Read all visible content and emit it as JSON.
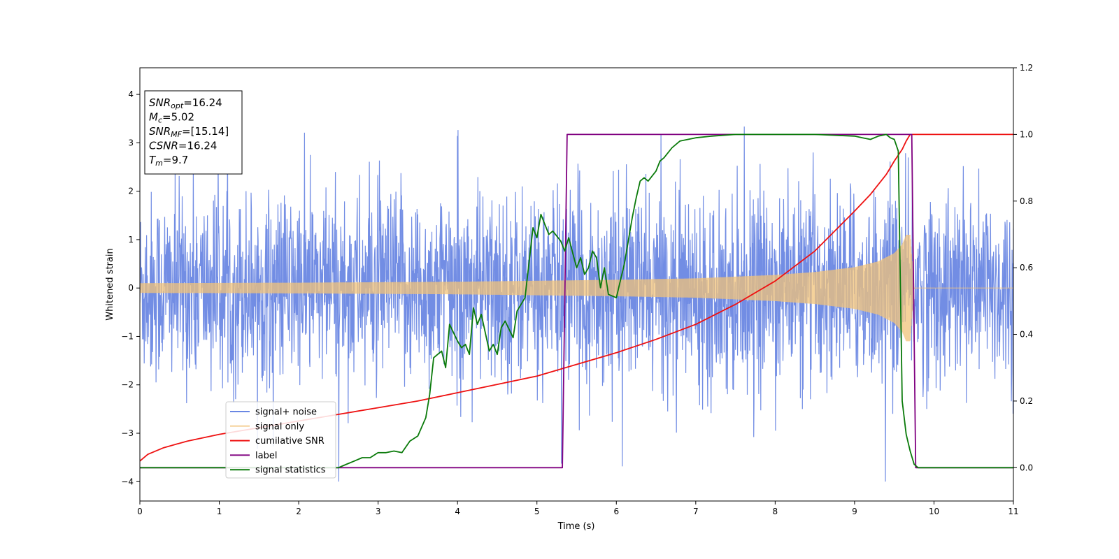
{
  "chart_data": {
    "type": "line",
    "xlabel": "Time (s)",
    "ylabel": "Whitened strain",
    "xlim": [
      0,
      11
    ],
    "ylim": [
      -4.4,
      4.55
    ],
    "y2lim": [
      -0.1,
      1.2
    ],
    "xticks": [
      0,
      1,
      2,
      3,
      4,
      5,
      6,
      7,
      8,
      9,
      10,
      11
    ],
    "yticks": [
      -4,
      -3,
      -2,
      -1,
      0,
      1,
      2,
      3,
      4
    ],
    "y2ticks": [
      0.0,
      0.2,
      0.4,
      0.6,
      0.8,
      1.0,
      1.2
    ],
    "grid": false,
    "legend_position": "lower-left",
    "annotation": {
      "lines": [
        {
          "name": "SNR",
          "sub": "opt",
          "value": "=16.24"
        },
        {
          "name": "M",
          "sub": "c",
          "value": "=5.02"
        },
        {
          "name": "SNR",
          "sub": "MF",
          "value": "=[15.14]"
        },
        {
          "name": "CSNR",
          "sub": "",
          "value": "=16.24"
        },
        {
          "name": "T",
          "sub": "m",
          "value": "=9.7"
        }
      ]
    },
    "series": [
      {
        "name": "signal+ noise",
        "axis": "left",
        "color": "#6a87e3",
        "kind": "noise",
        "typical_amplitude": 1.6,
        "peak_values": [
          3.6,
          -4.0,
          4.18,
          3.65,
          -3.75
        ]
      },
      {
        "name": "signal only",
        "axis": "left",
        "color": "#f2c37a",
        "kind": "chirp",
        "envelope_x": [
          0,
          2,
          4,
          6,
          7,
          8,
          8.5,
          9,
          9.3,
          9.5,
          9.6,
          9.65,
          9.7,
          9.75,
          11
        ],
        "envelope_y": [
          0.1,
          0.11,
          0.13,
          0.17,
          0.2,
          0.27,
          0.33,
          0.43,
          0.55,
          0.72,
          0.9,
          1.1,
          1.1,
          0,
          0
        ]
      },
      {
        "name": "cumilative SNR",
        "axis": "right",
        "color": "#ee1111",
        "x": [
          0,
          0.1,
          0.3,
          0.6,
          1,
          1.5,
          2,
          2.5,
          3,
          3.5,
          4,
          4.5,
          5,
          5.5,
          6,
          6.5,
          7,
          7.5,
          8,
          8.5,
          9,
          9.2,
          9.4,
          9.5,
          9.6,
          9.65,
          9.7,
          11
        ],
        "y": [
          0.02,
          0.04,
          0.06,
          0.08,
          0.1,
          0.12,
          0.14,
          0.16,
          0.18,
          0.2,
          0.225,
          0.25,
          0.275,
          0.31,
          0.345,
          0.385,
          0.43,
          0.49,
          0.56,
          0.65,
          0.77,
          0.82,
          0.88,
          0.92,
          0.955,
          0.98,
          1.0,
          1.0
        ]
      },
      {
        "name": "label",
        "axis": "right",
        "color": "#800080",
        "x": [
          0,
          5.32,
          5.38,
          9.72,
          9.77,
          11
        ],
        "y": [
          0,
          0,
          1,
          1,
          0,
          0
        ]
      },
      {
        "name": "signal statistics",
        "axis": "right",
        "color": "#0a7a0a",
        "x": [
          0,
          2.5,
          2.6,
          2.7,
          2.8,
          2.9,
          3.0,
          3.1,
          3.2,
          3.3,
          3.4,
          3.5,
          3.6,
          3.65,
          3.7,
          3.8,
          3.85,
          3.9,
          4.0,
          4.05,
          4.1,
          4.15,
          4.2,
          4.25,
          4.3,
          4.4,
          4.45,
          4.5,
          4.55,
          4.6,
          4.7,
          4.75,
          4.85,
          4.95,
          5.0,
          5.05,
          5.1,
          5.15,
          5.2,
          5.3,
          5.35,
          5.4,
          5.5,
          5.55,
          5.6,
          5.65,
          5.7,
          5.75,
          5.8,
          5.85,
          5.9,
          6.0,
          6.05,
          6.1,
          6.2,
          6.25,
          6.3,
          6.35,
          6.4,
          6.5,
          6.55,
          6.6,
          6.7,
          6.8,
          7.0,
          7.2,
          7.5,
          8.0,
          8.5,
          9.0,
          9.1,
          9.2,
          9.3,
          9.4,
          9.45,
          9.5,
          9.55,
          9.6,
          9.65,
          9.7,
          9.75,
          9.8,
          10.0,
          11.0
        ],
        "y": [
          0.0,
          0.0,
          0.01,
          0.02,
          0.03,
          0.03,
          0.045,
          0.045,
          0.05,
          0.045,
          0.08,
          0.095,
          0.15,
          0.22,
          0.33,
          0.35,
          0.3,
          0.43,
          0.38,
          0.36,
          0.37,
          0.34,
          0.48,
          0.43,
          0.46,
          0.35,
          0.37,
          0.34,
          0.42,
          0.44,
          0.39,
          0.47,
          0.51,
          0.72,
          0.69,
          0.76,
          0.73,
          0.7,
          0.71,
          0.68,
          0.65,
          0.69,
          0.6,
          0.63,
          0.58,
          0.6,
          0.65,
          0.63,
          0.54,
          0.6,
          0.52,
          0.51,
          0.56,
          0.61,
          0.75,
          0.81,
          0.86,
          0.87,
          0.86,
          0.89,
          0.92,
          0.93,
          0.96,
          0.98,
          0.99,
          0.995,
          1.0,
          1.0,
          1.0,
          0.995,
          0.99,
          0.985,
          0.995,
          1.0,
          0.99,
          0.985,
          0.95,
          0.2,
          0.1,
          0.05,
          0.01,
          0.0,
          0.0,
          0.0
        ]
      }
    ]
  }
}
